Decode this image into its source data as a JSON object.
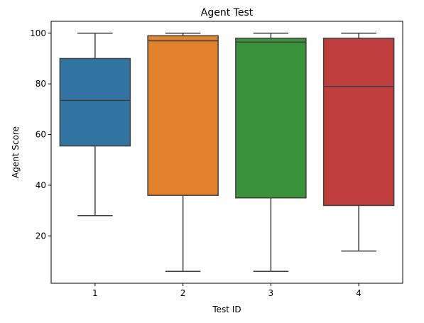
{
  "chart_data": {
    "type": "box",
    "title": "Agent Test",
    "xlabel": "Test ID",
    "ylabel": "Agent Score",
    "categories": [
      "1",
      "2",
      "3",
      "4"
    ],
    "series": [
      {
        "color": "#3274a1",
        "values": {
          "whisker_low": 28,
          "q1": 55.5,
          "median": 73.5,
          "q3": 90,
          "whisker_high": 100
        }
      },
      {
        "color": "#e1812c",
        "values": {
          "whisker_low": 6,
          "q1": 36,
          "median": 97,
          "q3": 99,
          "whisker_high": 100
        }
      },
      {
        "color": "#3a923a",
        "values": {
          "whisker_low": 6,
          "q1": 35,
          "median": 96.5,
          "q3": 98,
          "whisker_high": 100
        }
      },
      {
        "color": "#c03d3e",
        "values": {
          "whisker_low": 14,
          "q1": 32,
          "median": 79,
          "q3": 98,
          "whisker_high": 100
        }
      }
    ],
    "yticks": [
      20,
      40,
      60,
      80,
      100
    ],
    "ylim": [
      1.3,
      104.7
    ],
    "grid": false,
    "legend": "none",
    "line_color": "#3f3f3f"
  }
}
